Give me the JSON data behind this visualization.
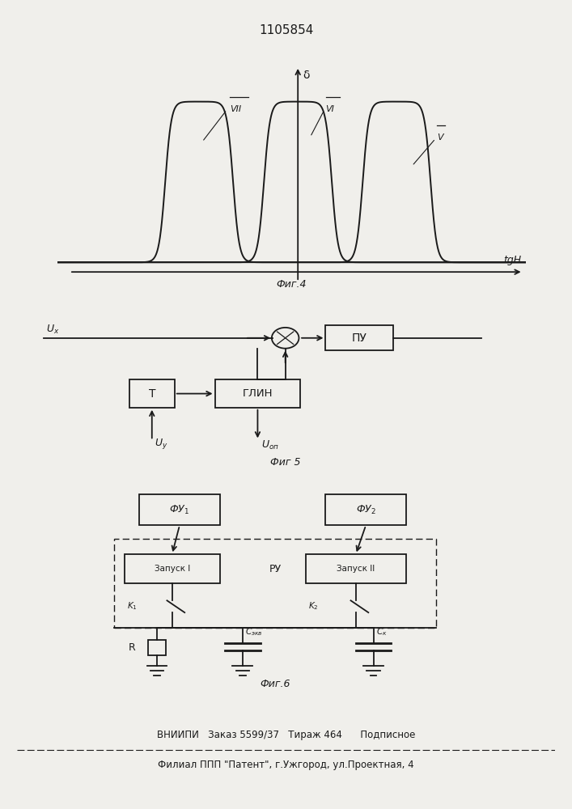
{
  "title_number": "1105854",
  "fig4_caption": "Фиг.4",
  "fig5_caption": "Фиг 5",
  "fig6_caption": "Фиг.6",
  "ylabel_fig4": "δ",
  "xlabel_fig4": "tgH",
  "curve_centers": [
    -1.5,
    0.1,
    1.7
  ],
  "bg_color": "#f0efeb",
  "line_color": "#1a1a1a",
  "footer_line1": "ВНИИПИ   Заказ 5599/37   Тираж 464      Подписное",
  "footer_line2": "Филиал ППП \"Патент\", г.Ужгород, ул.Проектная, 4"
}
